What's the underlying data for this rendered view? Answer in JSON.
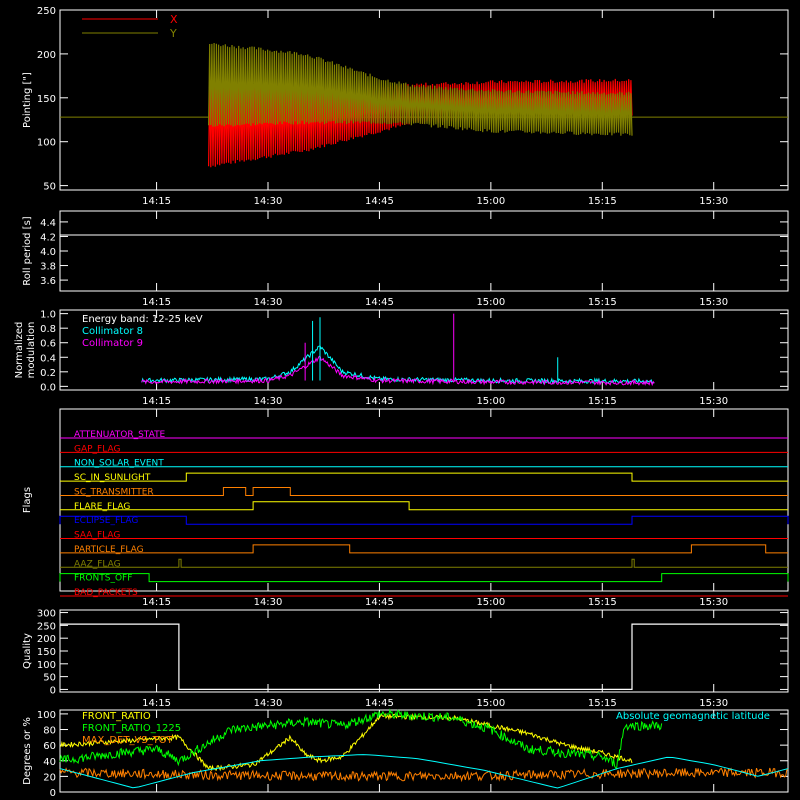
{
  "time_ticks": [
    "14:15",
    "14:30",
    "14:45",
    "15:00",
    "15:15",
    "15:30"
  ],
  "chart_data": [
    {
      "type": "line",
      "ylabel": "Pointing [\"]",
      "ylim": [
        45,
        250
      ],
      "yticks": [
        "50",
        "100",
        "150",
        "200",
        "250"
      ],
      "legend_placement": "top-left",
      "time_range": [
        "14:02",
        "15:40"
      ],
      "baseline": 128,
      "series": [
        {
          "name": "X",
          "color": "#ff0000",
          "envelope": [
            {
              "t": "14:22",
              "min": 72,
              "max": 168
            },
            {
              "t": "14:35",
              "min": 90,
              "max": 160
            },
            {
              "t": "14:45",
              "min": 112,
              "max": 162
            },
            {
              "t": "14:50",
              "min": 122,
              "max": 165
            },
            {
              "t": "15:00",
              "min": 126,
              "max": 168
            },
            {
              "t": "15:10",
              "min": 126,
              "max": 169
            },
            {
              "t": "15:19",
              "min": 128,
              "max": 170
            }
          ]
        },
        {
          "name": "Y",
          "color": "#808000",
          "envelope": [
            {
              "t": "14:22",
              "min": 118,
              "max": 212
            },
            {
              "t": "14:35",
              "min": 122,
              "max": 200
            },
            {
              "t": "14:45",
              "min": 122,
              "max": 172
            },
            {
              "t": "14:50",
              "min": 120,
              "max": 163
            },
            {
              "t": "15:00",
              "min": 112,
              "max": 158
            },
            {
              "t": "15:10",
              "min": 110,
              "max": 156
            },
            {
              "t": "15:19",
              "min": 108,
              "max": 155
            }
          ]
        }
      ]
    },
    {
      "type": "line",
      "ylabel": "Roll period [s]",
      "ylim": [
        3.45,
        4.55
      ],
      "yticks": [
        "3.6",
        "3.8",
        "4.0",
        "4.2",
        "4.4"
      ],
      "series": [
        {
          "color": "#ffffff",
          "x": [
            "14:02",
            "15:40"
          ],
          "y": [
            4.22,
            4.22
          ]
        }
      ]
    },
    {
      "type": "line",
      "ylabel": [
        "Normalized",
        "modulation"
      ],
      "ylim": [
        -0.05,
        1.05
      ],
      "yticks": [
        "0.0",
        "0.2",
        "0.4",
        "0.6",
        "0.8",
        "1.0"
      ],
      "legend": [
        "Energy band: 12-25 keV",
        "Collimator 8",
        "Collimator 9"
      ],
      "legend_colors": [
        "#ffffff",
        "#00ffff",
        "#ff00ff"
      ],
      "legend_placement": "top-left",
      "series": [
        {
          "name": "Collimator 8",
          "color": "#00ffff",
          "x": [
            "14:13",
            "14:30",
            "14:33",
            "14:37",
            "14:40",
            "14:45",
            "15:00",
            "15:22"
          ],
          "y": [
            0.08,
            0.1,
            0.2,
            0.55,
            0.2,
            0.1,
            0.08,
            0.07
          ]
        },
        {
          "name": "Collimator 9",
          "color": "#ff00ff",
          "x": [
            "14:13",
            "14:30",
            "14:33",
            "14:37",
            "14:40",
            "14:45",
            "15:00",
            "15:22"
          ],
          "y": [
            0.06,
            0.08,
            0.15,
            0.4,
            0.15,
            0.08,
            0.06,
            0.05
          ]
        }
      ]
    },
    {
      "type": "line",
      "ylabel": "Flags",
      "flags": [
        {
          "name": "ATTENUATOR_STATE",
          "color": "#ff00ff",
          "segments": []
        },
        {
          "name": "GAP_FLAG",
          "color": "#ff0000",
          "segments": []
        },
        {
          "name": "NON_SOLAR_EVENT",
          "color": "#00ffff",
          "segments": []
        },
        {
          "name": "SC_IN_SUNLIGHT",
          "color": "#ffff00",
          "segments": [
            [
              "14:19",
              "15:19"
            ]
          ]
        },
        {
          "name": "SC_TRANSMITTER",
          "color": "#ff8000",
          "segments": [
            [
              "14:24",
              "14:27"
            ],
            [
              "14:28",
              "14:33"
            ]
          ]
        },
        {
          "name": "FLARE_FLAG",
          "color": "#ffff00",
          "segments": [
            [
              "14:28",
              "14:49"
            ]
          ]
        },
        {
          "name": "ECLIPSE_FLAG",
          "color": "#0000ff",
          "segments": [
            [
              "14:02",
              "14:19"
            ],
            [
              "15:19",
              "15:40"
            ]
          ]
        },
        {
          "name": "SAA_FLAG",
          "color": "#ff0000",
          "segments": []
        },
        {
          "name": "PARTICLE_FLAG",
          "color": "#ff8000",
          "segments": [
            [
              "14:28",
              "14:41"
            ],
            [
              "15:27",
              "15:37"
            ]
          ]
        },
        {
          "name": "AAZ_FLAG",
          "color": "#808000",
          "segments": [
            [
              "14:18",
              "14:18.3"
            ],
            [
              "15:19",
              "15:19.3"
            ]
          ]
        },
        {
          "name": "FRONTS_OFF",
          "color": "#00ff00",
          "segments": [
            [
              "14:02",
              "14:14"
            ],
            [
              "15:23",
              "15:40"
            ]
          ]
        },
        {
          "name": "BAD_PACKETS",
          "color": "#ff0000",
          "segments": []
        }
      ]
    },
    {
      "type": "line",
      "ylabel": "Quality",
      "ylim": [
        -10,
        310
      ],
      "yticks": [
        "0",
        "50",
        "100",
        "150",
        "200",
        "250",
        "300"
      ],
      "series": [
        {
          "color": "#ffffff",
          "x": [
            "14:02",
            "14:18",
            "14:18",
            "15:19",
            "15:19",
            "15:40"
          ],
          "y": [
            255,
            255,
            0,
            0,
            255,
            255
          ]
        }
      ]
    },
    {
      "type": "line",
      "ylabel": "Degrees or %",
      "ylim": [
        0,
        105
      ],
      "yticks": [
        "0",
        "20",
        "40",
        "60",
        "80",
        "100"
      ],
      "legend": [
        "FRONT_RATIO",
        "FRONT_RATIO_1225",
        "MAX_DET_VS_TOT"
      ],
      "legend_colors": [
        "#ffff00",
        "#00ff00",
        "#ff8000"
      ],
      "annotation": "Absolute geomagnetic latitude",
      "annotation_color": "#00ffff",
      "series": [
        {
          "name": "FRONT_RATIO",
          "color": "#ffff00",
          "x": [
            "14:02",
            "14:10",
            "14:18",
            "14:22",
            "14:28",
            "14:31",
            "14:33",
            "14:35",
            "14:37",
            "14:40",
            "14:43",
            "14:45",
            "14:55",
            "15:05",
            "15:10",
            "15:15",
            "15:19"
          ],
          "y": [
            60,
            65,
            70,
            30,
            35,
            55,
            70,
            48,
            40,
            45,
            75,
            97,
            95,
            75,
            60,
            50,
            40
          ]
        },
        {
          "name": "FRONT_RATIO_1225",
          "color": "#00ff00",
          "x": [
            "14:02",
            "14:10",
            "14:15",
            "14:18",
            "14:25",
            "14:30",
            "14:35",
            "14:40",
            "14:45",
            "14:55",
            "15:00",
            "15:05",
            "15:10",
            "15:15",
            "15:17",
            "15:18",
            "15:23"
          ],
          "y": [
            40,
            50,
            55,
            40,
            80,
            85,
            90,
            85,
            100,
            95,
            80,
            55,
            50,
            45,
            35,
            85,
            85
          ]
        },
        {
          "name": "MAX_DET_VS_TOT",
          "color": "#ff8000",
          "x": [
            "14:02",
            "14:20",
            "14:40",
            "15:00",
            "15:20",
            "15:40"
          ],
          "y": [
            25,
            22,
            20,
            21,
            24,
            25
          ]
        },
        {
          "name": "Absolute geomagnetic latitude",
          "color": "#00ffff",
          "x": [
            "14:02",
            "14:12",
            "14:20",
            "14:29",
            "14:36",
            "14:43",
            "14:50",
            "14:59",
            "15:09",
            "15:17",
            "15:24",
            "15:30",
            "15:36",
            "15:40"
          ],
          "y": [
            30,
            5,
            25,
            40,
            45,
            48,
            43,
            28,
            5,
            30,
            45,
            35,
            20,
            30
          ]
        }
      ]
    }
  ]
}
